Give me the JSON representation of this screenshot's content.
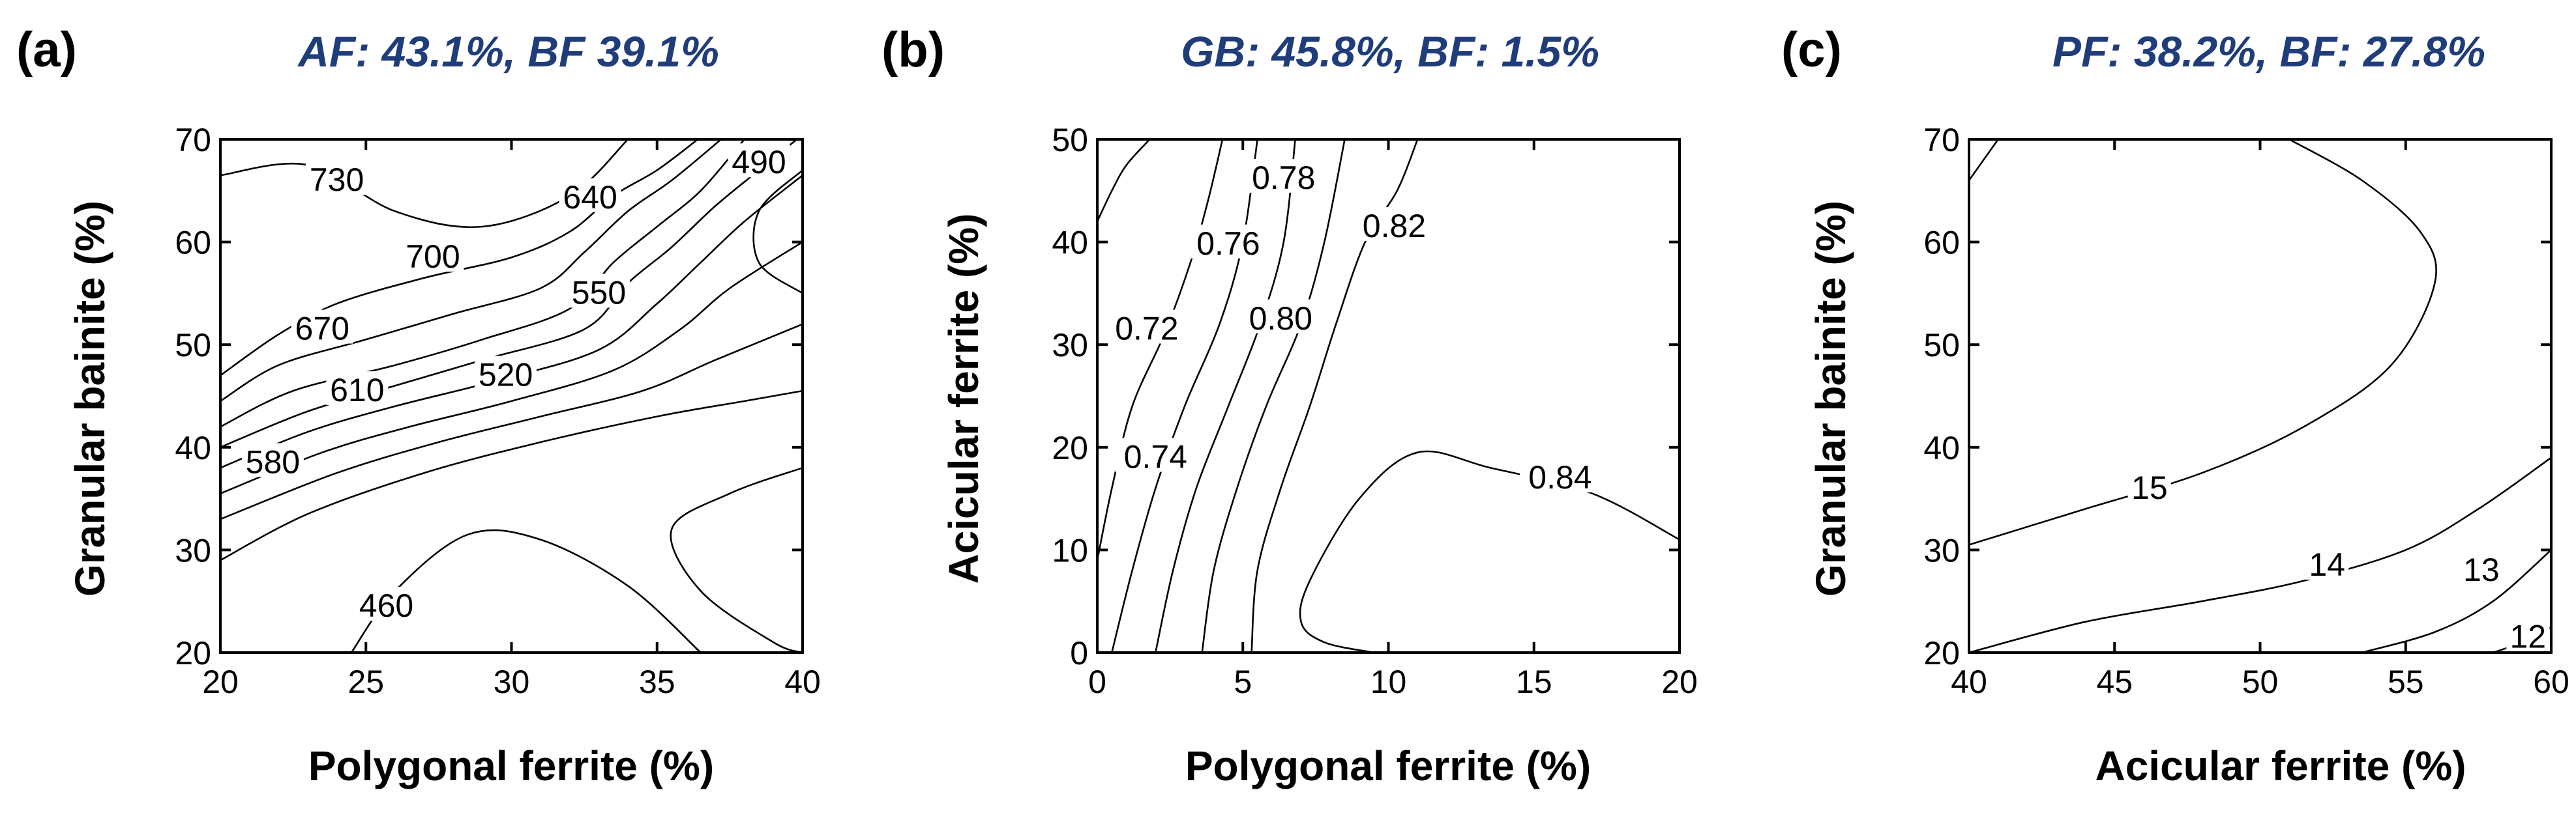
{
  "colors": {
    "title": "#1f3d7a",
    "line": "#000000",
    "background": "#ffffff"
  },
  "chart_data": [
    {
      "type": "contour",
      "panel": "(a)",
      "title": "AF: 43.1%, BF 39.1%",
      "xlabel": "Polygonal ferrite (%)",
      "ylabel": "Granular bainite (%)",
      "xlim": [
        20,
        40
      ],
      "ylim": [
        20,
        70
      ],
      "xticks": [
        20,
        25,
        30,
        35,
        40
      ],
      "yticks": [
        20,
        30,
        40,
        50,
        60,
        70
      ],
      "contour_levels": [
        460,
        490,
        520,
        550,
        580,
        610,
        640,
        670,
        700,
        730
      ],
      "labels": [
        {
          "text": "730",
          "x": 24.0,
          "y": 66.0
        },
        {
          "text": "700",
          "x": 27.3,
          "y": 58.5
        },
        {
          "text": "640",
          "x": 32.7,
          "y": 64.3
        },
        {
          "text": "490",
          "x": 38.5,
          "y": 67.7
        },
        {
          "text": "670",
          "x": 23.5,
          "y": 51.5
        },
        {
          "text": "550",
          "x": 33.0,
          "y": 55.0
        },
        {
          "text": "610",
          "x": 24.7,
          "y": 45.5
        },
        {
          "text": "520",
          "x": 29.8,
          "y": 47.0
        },
        {
          "text": "580",
          "x": 21.8,
          "y": 38.5
        },
        {
          "text": "460",
          "x": 25.7,
          "y": 24.5
        }
      ],
      "contours": [
        [
          [
            20.0,
            47.0
          ],
          [
            22.0,
            51.0
          ],
          [
            24.0,
            54.0
          ],
          [
            27.0,
            56.5
          ],
          [
            30.0,
            58.5
          ],
          [
            32.0,
            61.0
          ],
          [
            33.5,
            64.5
          ],
          [
            35.0,
            67.0
          ],
          [
            36.4,
            70.0
          ]
        ],
        [
          [
            20.0,
            44.5
          ],
          [
            22.0,
            48.0
          ],
          [
            25.0,
            50.5
          ],
          [
            28.0,
            53.0
          ],
          [
            31.0,
            55.5
          ],
          [
            32.5,
            59.0
          ],
          [
            34.0,
            63.0
          ],
          [
            35.5,
            66.0
          ],
          [
            37.2,
            70.0
          ]
        ],
        [
          [
            20.0,
            42.0
          ],
          [
            22.5,
            45.5
          ],
          [
            26.0,
            48.0
          ],
          [
            29.0,
            50.5
          ],
          [
            32.0,
            53.5
          ],
          [
            33.5,
            58.0
          ],
          [
            35.0,
            61.5
          ],
          [
            36.5,
            65.0
          ],
          [
            38.0,
            70.0
          ]
        ],
        [
          [
            20.0,
            40.0
          ],
          [
            23.0,
            43.5
          ],
          [
            26.0,
            46.0
          ],
          [
            29.0,
            48.5
          ],
          [
            32.5,
            51.5
          ],
          [
            34.0,
            56.0
          ],
          [
            35.5,
            59.5
          ],
          [
            37.0,
            63.5
          ],
          [
            38.5,
            67.0
          ],
          [
            39.8,
            70.0
          ]
        ],
        [
          [
            20.0,
            38.0
          ],
          [
            23.0,
            41.5
          ],
          [
            26.0,
            44.0
          ],
          [
            29.5,
            46.5
          ],
          [
            33.0,
            49.5
          ],
          [
            35.0,
            54.0
          ],
          [
            36.5,
            58.0
          ],
          [
            38.0,
            62.0
          ],
          [
            40.0,
            66.5
          ]
        ],
        [
          [
            20.0,
            35.5
          ],
          [
            23.5,
            39.5
          ],
          [
            26.5,
            42.0
          ],
          [
            30.0,
            44.5
          ],
          [
            33.5,
            47.5
          ],
          [
            35.8,
            51.5
          ],
          [
            37.5,
            55.5
          ],
          [
            40.0,
            60.0
          ]
        ],
        [
          [
            20.0,
            33.0
          ],
          [
            24.0,
            37.5
          ],
          [
            27.5,
            40.5
          ],
          [
            31.0,
            43.0
          ],
          [
            34.5,
            45.5
          ],
          [
            37.0,
            48.5
          ],
          [
            40.0,
            52.0
          ]
        ],
        [
          [
            20.0,
            29.0
          ],
          [
            23.0,
            33.5
          ],
          [
            27.0,
            37.5
          ],
          [
            31.0,
            40.5
          ],
          [
            35.0,
            43.0
          ],
          [
            38.0,
            44.5
          ],
          [
            40.0,
            45.5
          ]
        ],
        [
          [
            20.0,
            66.5
          ],
          [
            23.0,
            67.5
          ],
          [
            26.0,
            63.0
          ],
          [
            29.0,
            61.5
          ],
          [
            32.0,
            64.5
          ],
          [
            34.0,
            70.0
          ]
        ],
        [
          [
            24.5,
            20.0
          ],
          [
            26.0,
            26.0
          ],
          [
            28.5,
            31.5
          ],
          [
            31.0,
            31.0
          ],
          [
            34.0,
            26.5
          ],
          [
            36.5,
            20.0
          ]
        ],
        [
          [
            40.0,
            38.0
          ],
          [
            37.5,
            35.5
          ],
          [
            35.5,
            32.0
          ],
          [
            36.5,
            26.0
          ],
          [
            39.0,
            21.0
          ],
          [
            40.0,
            20.0
          ]
        ],
        [
          [
            40.0,
            67.0
          ],
          [
            38.5,
            63.0
          ],
          [
            38.5,
            58.0
          ],
          [
            40.0,
            55.0
          ]
        ]
      ]
    },
    {
      "type": "contour",
      "panel": "(b)",
      "title": "GB: 45.8%, BF: 1.5%",
      "xlabel": "Polygonal ferrite (%)",
      "ylabel": "Acicular ferrite (%)",
      "xlim": [
        0,
        20
      ],
      "ylim": [
        0,
        50
      ],
      "xticks": [
        0,
        5,
        10,
        15,
        20
      ],
      "yticks": [
        0,
        10,
        20,
        30,
        40,
        50
      ],
      "contour_levels": [
        0.72,
        0.74,
        0.76,
        0.78,
        0.8,
        0.82,
        0.84
      ],
      "labels": [
        {
          "text": "0.78",
          "x": 6.4,
          "y": 46.2
        },
        {
          "text": "0.76",
          "x": 4.5,
          "y": 39.8
        },
        {
          "text": "0.82",
          "x": 10.2,
          "y": 41.5
        },
        {
          "text": "0.80",
          "x": 6.3,
          "y": 32.5
        },
        {
          "text": "0.72",
          "x": 1.7,
          "y": 31.5
        },
        {
          "text": "0.74",
          "x": 2.0,
          "y": 19.0
        },
        {
          "text": "0.84",
          "x": 15.9,
          "y": 17.0
        }
      ],
      "contours": [
        [
          [
            0.0,
            42.0
          ],
          [
            0.5,
            45.0
          ],
          [
            1.0,
            47.5
          ],
          [
            1.8,
            50.0
          ]
        ],
        [
          [
            0.0,
            9.0
          ],
          [
            0.5,
            16.0
          ],
          [
            1.2,
            24.0
          ],
          [
            2.3,
            31.0
          ],
          [
            3.2,
            38.0
          ],
          [
            3.8,
            44.0
          ],
          [
            4.3,
            50.0
          ]
        ],
        [
          [
            0.5,
            0.0
          ],
          [
            1.2,
            8.0
          ],
          [
            2.0,
            16.0
          ],
          [
            3.0,
            24.0
          ],
          [
            4.2,
            32.0
          ],
          [
            5.0,
            40.0
          ],
          [
            5.5,
            50.0
          ]
        ],
        [
          [
            2.0,
            0.0
          ],
          [
            2.6,
            8.0
          ],
          [
            3.4,
            16.0
          ],
          [
            4.5,
            24.0
          ],
          [
            5.6,
            32.0
          ],
          [
            6.4,
            40.0
          ],
          [
            6.8,
            50.0
          ]
        ],
        [
          [
            3.6,
            0.0
          ],
          [
            4.0,
            8.0
          ],
          [
            4.8,
            16.0
          ],
          [
            5.8,
            24.0
          ],
          [
            7.0,
            32.0
          ],
          [
            7.8,
            40.0
          ],
          [
            8.5,
            50.0
          ]
        ],
        [
          [
            5.3,
            0.0
          ],
          [
            5.5,
            8.0
          ],
          [
            6.3,
            16.0
          ],
          [
            7.3,
            24.0
          ],
          [
            8.2,
            32.0
          ],
          [
            9.2,
            40.0
          ],
          [
            10.3,
            45.0
          ],
          [
            11.0,
            50.0
          ]
        ],
        [
          [
            20.0,
            11.0
          ],
          [
            17.0,
            15.5
          ],
          [
            13.5,
            18.0
          ],
          [
            11.0,
            19.5
          ],
          [
            9.0,
            15.0
          ],
          [
            7.3,
            7.0
          ],
          [
            7.0,
            3.0
          ],
          [
            7.8,
            1.0
          ],
          [
            9.5,
            0.0
          ]
        ]
      ]
    },
    {
      "type": "contour",
      "panel": "(c)",
      "title": "PF: 38.2%, BF: 27.8%",
      "xlabel": "Acicular ferrite (%)",
      "ylabel": "Granular bainite (%)",
      "xlim": [
        40,
        60
      ],
      "ylim": [
        20,
        70
      ],
      "xticks": [
        40,
        45,
        50,
        55,
        60
      ],
      "yticks": [
        20,
        30,
        40,
        50,
        60,
        70
      ],
      "contour_levels": [
        12,
        13,
        14,
        15
      ],
      "labels": [
        {
          "text": "15",
          "x": 46.2,
          "y": 36.0
        },
        {
          "text": "14",
          "x": 52.3,
          "y": 28.5
        },
        {
          "text": "13",
          "x": 57.6,
          "y": 28.0
        },
        {
          "text": "12",
          "x": 59.2,
          "y": 21.5
        }
      ],
      "contours": [
        [
          [
            40.0,
            30.5
          ],
          [
            44.0,
            34.0
          ],
          [
            48.0,
            37.5
          ],
          [
            51.5,
            42.0
          ],
          [
            54.5,
            48.0
          ],
          [
            56.0,
            56.0
          ],
          [
            55.5,
            61.0
          ],
          [
            53.5,
            66.0
          ],
          [
            51.0,
            70.0
          ]
        ],
        [
          [
            40.0,
            20.0
          ],
          [
            44.0,
            23.0
          ],
          [
            48.0,
            25.0
          ],
          [
            51.5,
            27.0
          ],
          [
            55.0,
            30.0
          ],
          [
            57.5,
            34.0
          ],
          [
            60.0,
            39.0
          ]
        ],
        [
          [
            53.5,
            20.0
          ],
          [
            56.0,
            22.0
          ],
          [
            58.0,
            25.0
          ],
          [
            60.0,
            30.0
          ]
        ],
        [
          [
            58.0,
            20.0
          ],
          [
            59.0,
            21.0
          ],
          [
            60.0,
            22.5
          ]
        ],
        [
          [
            40.0,
            66.0
          ],
          [
            40.5,
            68.0
          ],
          [
            41.0,
            70.0
          ]
        ]
      ]
    }
  ]
}
